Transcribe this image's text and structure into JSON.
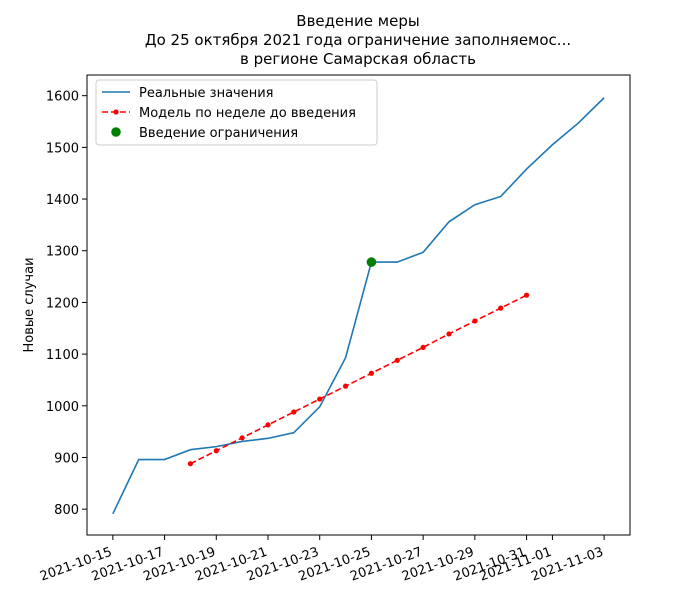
{
  "chart_data": {
    "type": "line",
    "title_lines": [
      "Введение меры",
      "До 25 октября 2021 года ограничение заполняемос...",
      "в регионе Самарская область"
    ],
    "xlabel": "",
    "ylabel": "Новые случаи",
    "ylim": [
      750,
      1640
    ],
    "yticks": [
      800,
      900,
      1000,
      1100,
      1200,
      1300,
      1400,
      1500,
      1600
    ],
    "xticks": [
      "2021-10-15",
      "2021-10-17",
      "2021-10-19",
      "2021-10-21",
      "2021-10-23",
      "2021-10-25",
      "2021-10-27",
      "2021-10-29",
      "2021-10-31",
      "2021-11-01",
      "2021-11-03"
    ],
    "xrange": [
      "2021-10-14",
      "2021-11-04"
    ],
    "legend_position": "upper-left",
    "series": [
      {
        "name": "Реальные значения",
        "style": "solid",
        "color": "#1f77b4",
        "x": [
          "2021-10-15",
          "2021-10-16",
          "2021-10-17",
          "2021-10-18",
          "2021-10-19",
          "2021-10-20",
          "2021-10-21",
          "2021-10-22",
          "2021-10-23",
          "2021-10-24",
          "2021-10-25",
          "2021-10-26",
          "2021-10-27",
          "2021-10-28",
          "2021-10-29",
          "2021-10-30",
          "2021-10-31",
          "2021-11-01",
          "2021-11-02",
          "2021-11-03"
        ],
        "y": [
          791,
          896,
          896,
          915,
          921,
          931,
          937,
          948,
          998,
          1093,
          1278,
          1278,
          1297,
          1356,
          1389,
          1405,
          1458,
          1505,
          1547,
          1596
        ]
      },
      {
        "name": "Модель по неделе до введения",
        "style": "dashed-dot",
        "color": "#ff0000",
        "x": [
          "2021-10-18",
          "2021-10-19",
          "2021-10-20",
          "2021-10-21",
          "2021-10-22",
          "2021-10-23",
          "2021-10-24",
          "2021-10-25",
          "2021-10-26",
          "2021-10-27",
          "2021-10-28",
          "2021-10-29",
          "2021-10-30",
          "2021-10-31"
        ],
        "y": [
          888,
          913,
          938,
          963,
          988,
          1013,
          1038,
          1063,
          1088,
          1113,
          1139,
          1164,
          1189,
          1214
        ]
      },
      {
        "name": "Введение ограничения",
        "style": "point",
        "color": "#008000",
        "x": [
          "2021-10-25"
        ],
        "y": [
          1278
        ]
      }
    ]
  }
}
